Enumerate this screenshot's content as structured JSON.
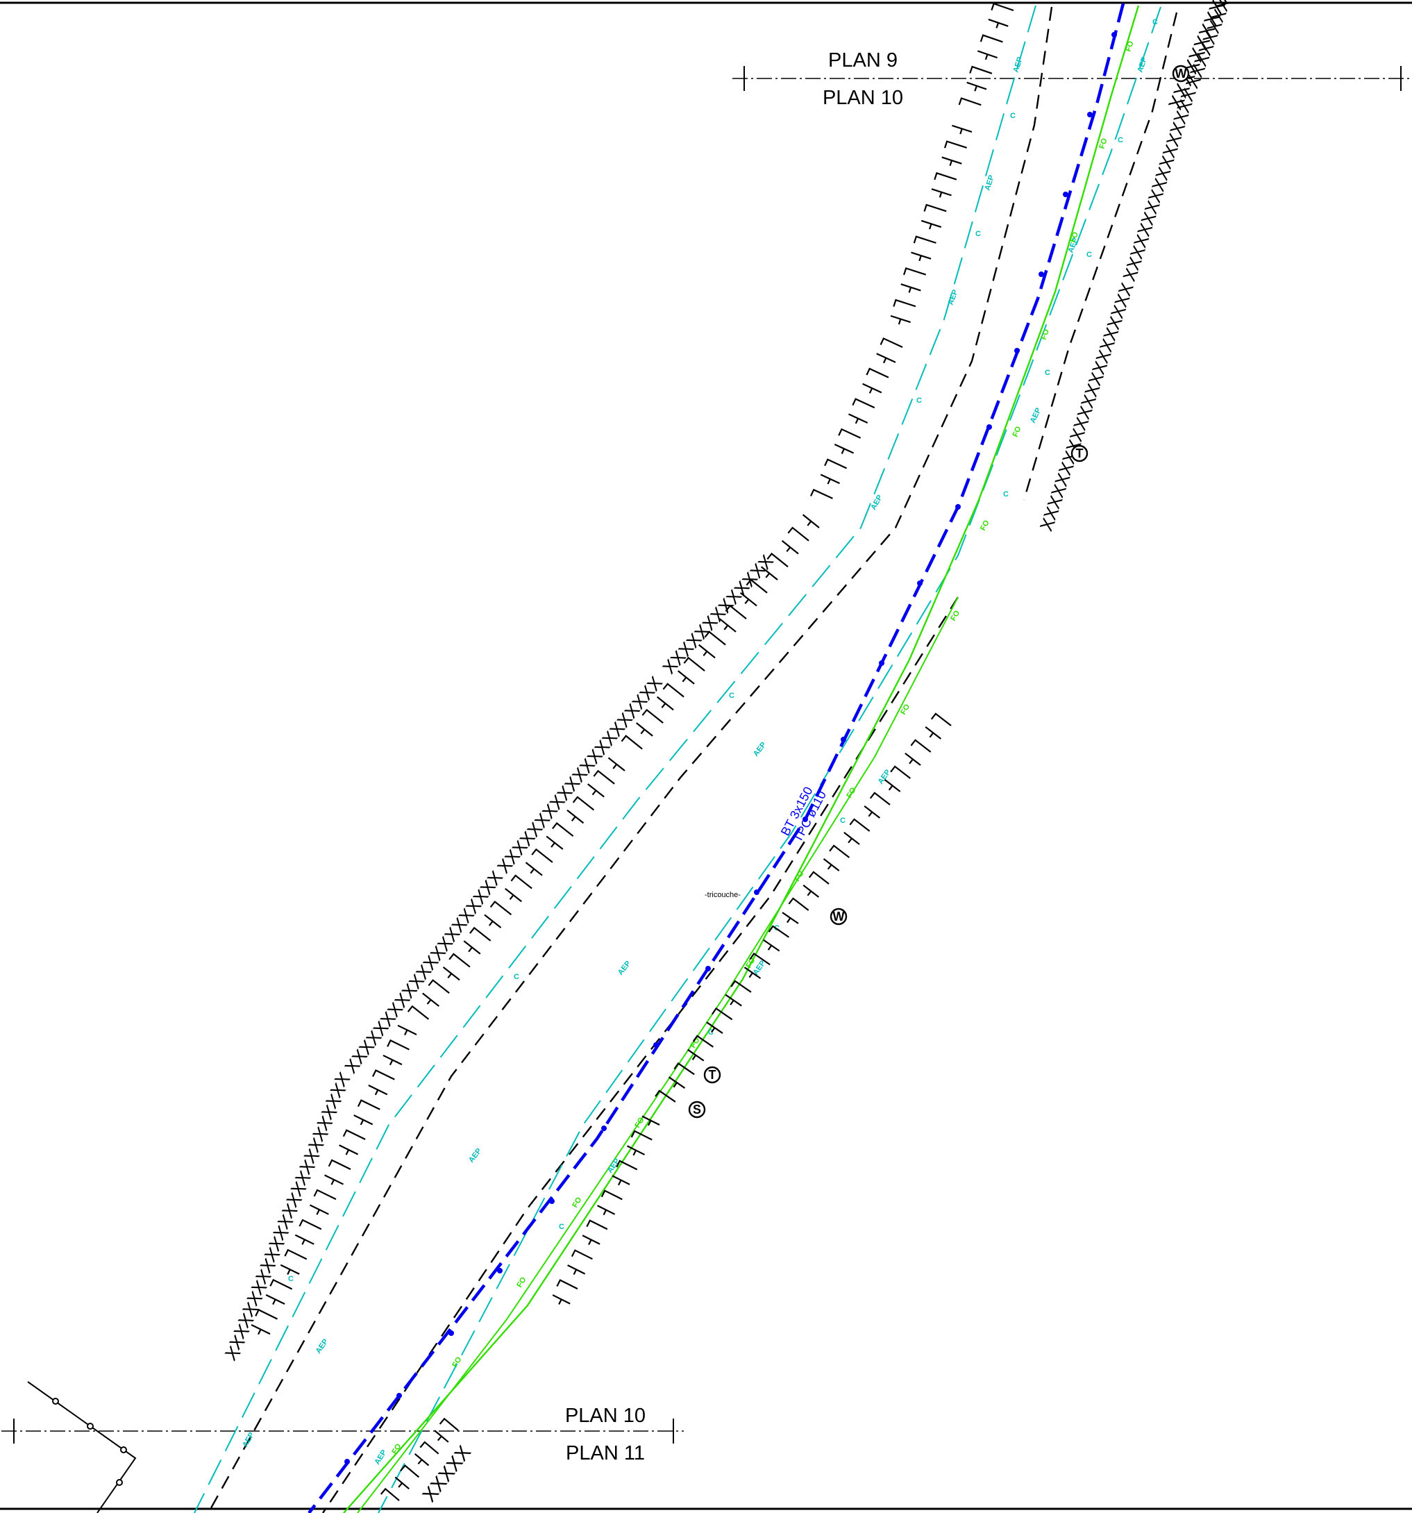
{
  "plan_marks": {
    "top": {
      "above": "PLAN 9",
      "below": "PLAN 10"
    },
    "bottom": {
      "above": "PLAN 10",
      "below": "PLAN 11"
    }
  },
  "networks": {
    "aep": {
      "code": "AEP",
      "color": "#00bbbb"
    },
    "c": {
      "code": "C",
      "color": "#00bbbb"
    },
    "fo": {
      "code": "FO",
      "color": "#33dd00"
    },
    "bt": {
      "color": "#0000ee"
    }
  },
  "cable_label": {
    "line1": "BT 3x150",
    "line2": "TPC ø110"
  },
  "road_label": "-tricouche-",
  "symbols": [
    {
      "id": "w-top",
      "letter": "W"
    },
    {
      "id": "t-upper",
      "letter": "T"
    },
    {
      "id": "w-mid",
      "letter": "W"
    },
    {
      "id": "t-lower",
      "letter": "T"
    },
    {
      "id": "s-lower",
      "letter": "S"
    }
  ],
  "fences": {
    "mark": "X",
    "top_right": "XXXXXXXXXXXX",
    "bottom": "XXXXX"
  },
  "colors": {
    "line": "#000000",
    "background": "#ffffff"
  }
}
